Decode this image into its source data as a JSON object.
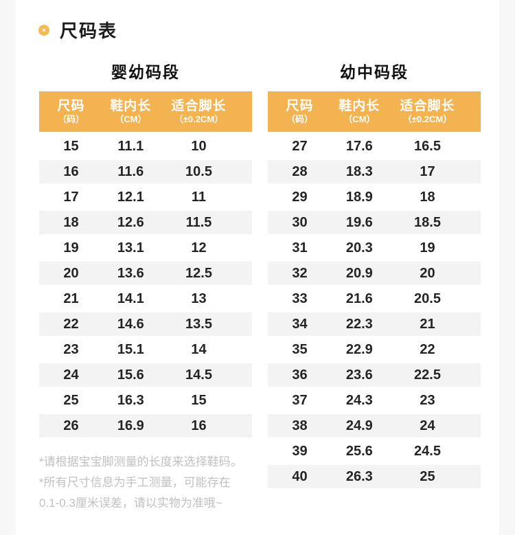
{
  "page": {
    "title": "尺码表"
  },
  "colors": {
    "accent": "#f3b351",
    "ring": "#f5ba52",
    "header_text": "#ffffff",
    "row_alt_bg": "#f3f3f3",
    "body_text": "#242424",
    "footnote_text": "#c1c1c1",
    "page_bg": "#f7f7f7",
    "card_bg": "#ffffff"
  },
  "icons": {
    "title_bullet": "ring-icon"
  },
  "chart_data": [
    {
      "type": "table",
      "title": "婴幼码段",
      "columns": [
        {
          "label": "尺码",
          "sub": "（码）"
        },
        {
          "label": "鞋内长",
          "sub": "（CM）"
        },
        {
          "label": "适合脚长",
          "sub": "（±0.2CM）"
        }
      ],
      "rows": [
        [
          "15",
          "11.1",
          "10"
        ],
        [
          "16",
          "11.6",
          "10.5"
        ],
        [
          "17",
          "12.1",
          "11"
        ],
        [
          "18",
          "12.6",
          "11.5"
        ],
        [
          "19",
          "13.1",
          "12"
        ],
        [
          "20",
          "13.6",
          "12.5"
        ],
        [
          "21",
          "14.1",
          "13"
        ],
        [
          "22",
          "14.6",
          "13.5"
        ],
        [
          "23",
          "15.1",
          "14"
        ],
        [
          "24",
          "15.6",
          "14.5"
        ],
        [
          "25",
          "16.3",
          "15"
        ],
        [
          "26",
          "16.9",
          "16"
        ]
      ]
    },
    {
      "type": "table",
      "title": "幼中码段",
      "columns": [
        {
          "label": "尺码",
          "sub": "（码）"
        },
        {
          "label": "鞋内长",
          "sub": "（CM）"
        },
        {
          "label": "适合脚长",
          "sub": "（±0.2CM）"
        }
      ],
      "rows": [
        [
          "27",
          "17.6",
          "16.5"
        ],
        [
          "28",
          "18.3",
          "17"
        ],
        [
          "29",
          "18.9",
          "18"
        ],
        [
          "30",
          "19.6",
          "18.5"
        ],
        [
          "31",
          "20.3",
          "19"
        ],
        [
          "32",
          "20.9",
          "20"
        ],
        [
          "33",
          "21.6",
          "20.5"
        ],
        [
          "34",
          "22.3",
          "21"
        ],
        [
          "35",
          "22.9",
          "22"
        ],
        [
          "36",
          "23.6",
          "22.5"
        ],
        [
          "37",
          "24.3",
          "23"
        ],
        [
          "38",
          "24.9",
          "24"
        ],
        [
          "39",
          "25.6",
          "24.5"
        ],
        [
          "40",
          "26.3",
          "25"
        ]
      ]
    }
  ],
  "footnotes": [
    "*请根据宝宝脚测量的长度来选择鞋码。",
    "*所有尺寸信息为手工测量，可能存在",
    "0.1-0.3厘米误差，请以实物为准哦~"
  ]
}
